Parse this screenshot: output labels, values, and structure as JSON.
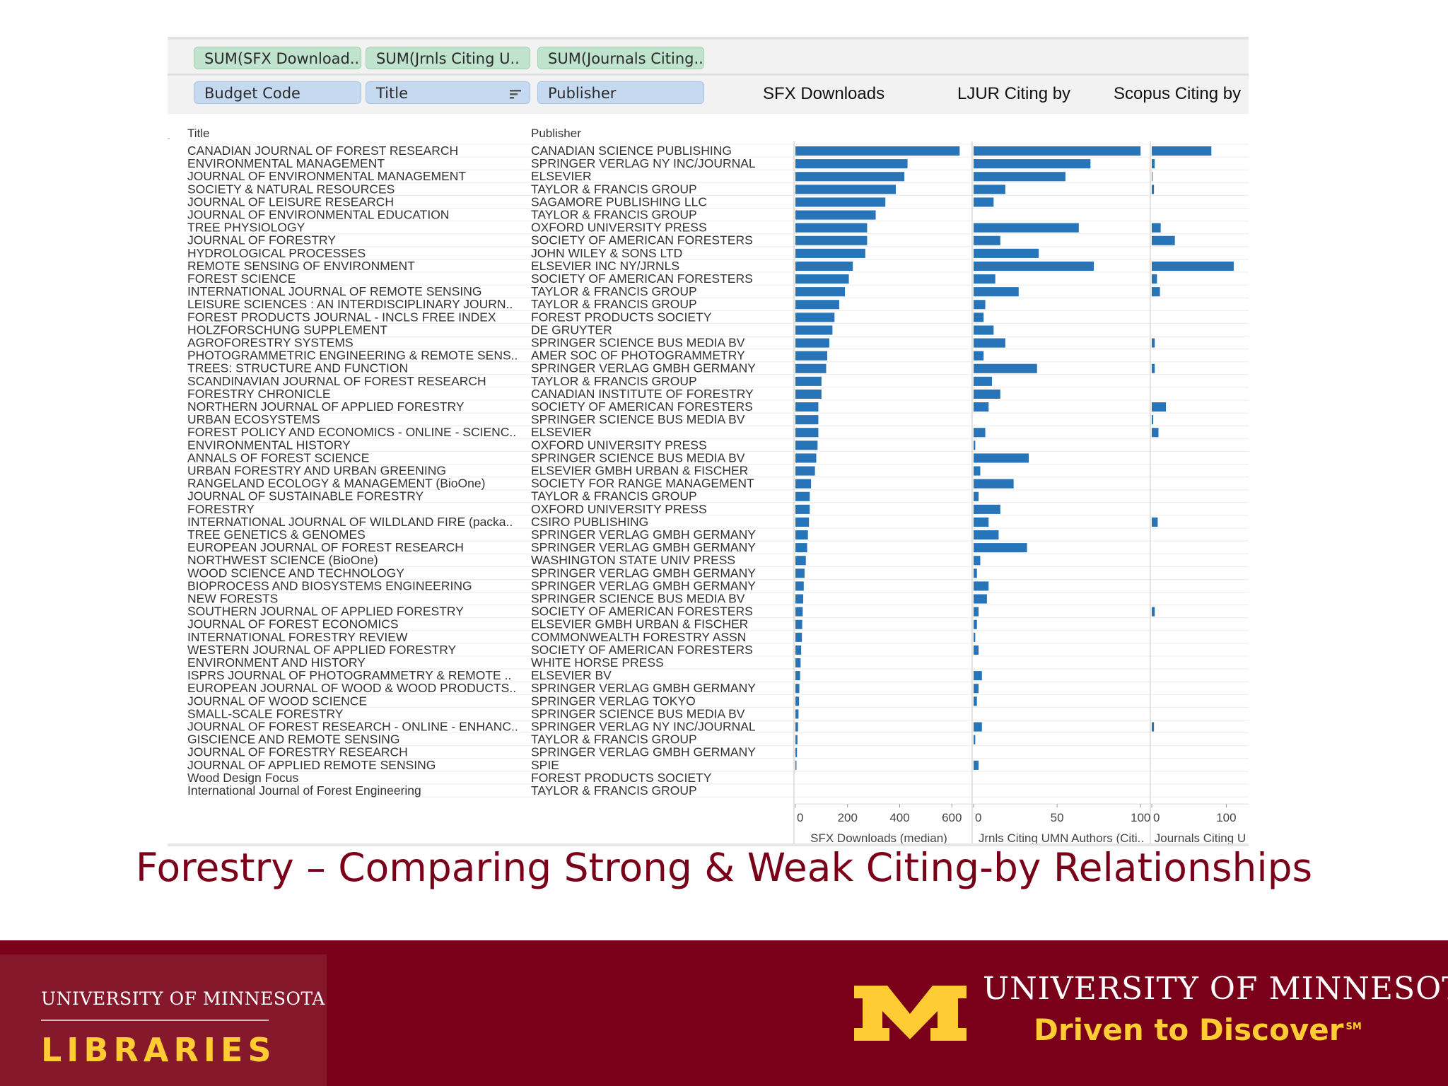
{
  "shelf": {
    "columns_pills": [
      "SUM(SFX Download..",
      "SUM(Jrnls Citing U..",
      "SUM(Journals Citing.."
    ],
    "rows_pills": [
      "Budget Code",
      "Title",
      "Publisher"
    ],
    "column_headers": [
      "SFX Downloads",
      "LJUR Citing by",
      "Scopus Citing by"
    ]
  },
  "chart_data": {
    "type": "bar",
    "orientation": "horizontal",
    "row_header_title": "Title",
    "row_header_publisher": "Publisher",
    "categories": [
      "CANADIAN JOURNAL OF FOREST RESEARCH",
      "ENVIRONMENTAL MANAGEMENT",
      "JOURNAL OF ENVIRONMENTAL MANAGEMENT",
      "SOCIETY & NATURAL RESOURCES",
      "JOURNAL OF LEISURE RESEARCH",
      "JOURNAL OF ENVIRONMENTAL EDUCATION",
      "TREE PHYSIOLOGY",
      "JOURNAL OF FORESTRY",
      "HYDROLOGICAL PROCESSES",
      "REMOTE SENSING OF ENVIRONMENT",
      "FOREST SCIENCE",
      "INTERNATIONAL JOURNAL OF REMOTE SENSING",
      "LEISURE SCIENCES : AN INTERDISCIPLINARY JOURN..",
      "FOREST PRODUCTS JOURNAL - INCLS FREE INDEX",
      "HOLZFORSCHUNG SUPPLEMENT",
      "AGROFORESTRY SYSTEMS",
      "PHOTOGRAMMETRIC ENGINEERING & REMOTE SENS..",
      "TREES: STRUCTURE AND FUNCTION",
      "SCANDINAVIAN JOURNAL OF FOREST RESEARCH",
      "FORESTRY CHRONICLE",
      "NORTHERN JOURNAL OF APPLIED FORESTRY",
      "URBAN ECOSYSTEMS",
      "FOREST POLICY AND ECONOMICS - ONLINE - SCIENC..",
      "ENVIRONMENTAL HISTORY",
      "ANNALS OF FOREST SCIENCE",
      "URBAN FORESTRY AND URBAN GREENING",
      "RANGELAND ECOLOGY & MANAGEMENT (BioOne)",
      "JOURNAL OF SUSTAINABLE FORESTRY",
      "FORESTRY",
      "INTERNATIONAL JOURNAL OF WILDLAND FIRE (packa..",
      "TREE GENETICS & GENOMES",
      "EUROPEAN JOURNAL OF FOREST RESEARCH",
      "NORTHWEST SCIENCE (BioOne)",
      "WOOD SCIENCE AND TECHNOLOGY",
      "BIOPROCESS AND BIOSYSTEMS ENGINEERING",
      "NEW FORESTS",
      "SOUTHERN JOURNAL OF APPLIED FORESTRY",
      "JOURNAL OF FOREST ECONOMICS",
      "INTERNATIONAL FORESTRY REVIEW",
      "WESTERN JOURNAL OF APPLIED FORESTRY",
      "ENVIRONMENT AND HISTORY",
      "ISPRS JOURNAL OF PHOTOGRAMMETRY & REMOTE ..",
      "EUROPEAN JOURNAL OF WOOD & WOOD PRODUCTS..",
      "JOURNAL OF WOOD SCIENCE",
      "SMALL-SCALE FORESTRY",
      "JOURNAL OF FOREST RESEARCH - ONLINE - ENHANC..",
      "GISCIENCE AND REMOTE SENSING",
      "JOURNAL OF FORESTRY RESEARCH",
      "JOURNAL OF APPLIED REMOTE SENSING",
      "Wood Design Focus",
      "International Journal of Forest Engineering"
    ],
    "publishers": [
      "CANADIAN SCIENCE PUBLISHING",
      "SPRINGER VERLAG NY INC/JOURNAL",
      "ELSEVIER",
      "TAYLOR & FRANCIS GROUP",
      "SAGAMORE PUBLISHING LLC",
      "TAYLOR & FRANCIS GROUP",
      "OXFORD UNIVERSITY PRESS",
      "SOCIETY OF AMERICAN FORESTERS",
      "JOHN WILEY & SONS LTD",
      "ELSEVIER INC NY/JRNLS",
      "SOCIETY OF AMERICAN FORESTERS",
      "TAYLOR & FRANCIS GROUP",
      "TAYLOR & FRANCIS GROUP",
      "FOREST PRODUCTS SOCIETY",
      "DE GRUYTER",
      "SPRINGER SCIENCE BUS MEDIA BV",
      "AMER SOC OF PHOTOGRAMMETRY",
      "SPRINGER VERLAG GMBH GERMANY",
      "TAYLOR & FRANCIS GROUP",
      "CANADIAN INSTITUTE OF FORESTRY",
      "SOCIETY OF AMERICAN FORESTERS",
      "SPRINGER SCIENCE BUS MEDIA BV",
      "ELSEVIER",
      "OXFORD UNIVERSITY PRESS",
      "SPRINGER SCIENCE BUS MEDIA BV",
      "ELSEVIER GMBH URBAN & FISCHER",
      "SOCIETY FOR RANGE MANAGEMENT",
      "TAYLOR & FRANCIS GROUP",
      "OXFORD UNIVERSITY PRESS",
      "CSIRO PUBLISHING",
      "SPRINGER VERLAG GMBH GERMANY",
      "SPRINGER VERLAG GMBH GERMANY",
      "WASHINGTON STATE UNIV PRESS",
      "SPRINGER VERLAG GMBH GERMANY",
      "SPRINGER VERLAG GMBH GERMANY",
      "SPRINGER SCIENCE BUS MEDIA BV",
      "SOCIETY OF AMERICAN FORESTERS",
      "ELSEVIER GMBH URBAN & FISCHER",
      "COMMONWEALTH FORESTRY ASSN",
      "SOCIETY OF AMERICAN FORESTERS",
      "WHITE HORSE PRESS",
      "ELSEVIER BV",
      "SPRINGER VERLAG GMBH GERMANY",
      "SPRINGER VERLAG TOKYO",
      "SPRINGER SCIENCE BUS MEDIA BV",
      "SPRINGER VERLAG NY INC/JOURNAL",
      "TAYLOR & FRANCIS GROUP",
      "SPRINGER VERLAG GMBH GERMANY",
      "SPIE",
      "FOREST PRODUCTS SOCIETY",
      "TAYLOR & FRANCIS GROUP"
    ],
    "series": [
      {
        "name": "SFX Downloads",
        "axis_label": "SFX Downloads (median)",
        "xlim": [
          0,
          640
        ],
        "ticks": [
          0,
          200,
          400,
          600
        ],
        "values": [
          630,
          430,
          418,
          385,
          345,
          308,
          275,
          275,
          268,
          220,
          205,
          190,
          168,
          150,
          142,
          130,
          122,
          118,
          100,
          100,
          88,
          88,
          88,
          85,
          80,
          75,
          60,
          55,
          55,
          52,
          48,
          45,
          40,
          35,
          32,
          30,
          28,
          26,
          25,
          22,
          20,
          18,
          15,
          14,
          12,
          10,
          8,
          6,
          4,
          0,
          0
        ]
      },
      {
        "name": "LJUR Citing by",
        "axis_label": "Jrnls Citing UMN Authors (Citi..",
        "xlim": [
          0,
          105
        ],
        "ticks": [
          0,
          50,
          100
        ],
        "values": [
          100,
          70,
          55,
          19,
          12,
          0,
          63,
          16,
          39,
          72,
          13,
          27,
          7,
          6,
          12,
          19,
          6,
          38,
          11,
          16,
          9,
          0,
          7,
          1,
          33,
          4,
          24,
          3,
          16,
          9,
          15,
          32,
          4,
          2,
          9,
          8,
          3,
          2,
          1,
          3,
          0,
          5,
          3,
          2,
          0,
          5,
          1,
          0,
          3,
          0,
          0
        ]
      },
      {
        "name": "Scopus Citing by",
        "axis_label": "Journals Citing U",
        "xlim": [
          0,
          130
        ],
        "ticks": [
          0,
          100
        ],
        "values": [
          80,
          4,
          1,
          3,
          0,
          0,
          12,
          31,
          0,
          110,
          7,
          11,
          0,
          0,
          0,
          4,
          0,
          4,
          0,
          0,
          19,
          2,
          9,
          0,
          0,
          0,
          0,
          0,
          0,
          8,
          0,
          0,
          0,
          0,
          0,
          0,
          4,
          0,
          0,
          0,
          0,
          0,
          0,
          0,
          0,
          3,
          0,
          0,
          0,
          0,
          0
        ]
      }
    ],
    "bar_color": "#2874b8"
  },
  "slide_title": "Forestry – Comparing Strong & Weak  Citing-by Relationships",
  "footer": {
    "libraries_university": "UNIVERSITY OF MINNESOTA",
    "libraries_label": "LIBRARIES",
    "university_name": "UNIVERSITY OF MINNESOTA",
    "slogan": "Driven to Discover",
    "slogan_mark": "SM",
    "brand_maroon": "#7a0019",
    "brand_gold": "#ffcc33"
  }
}
